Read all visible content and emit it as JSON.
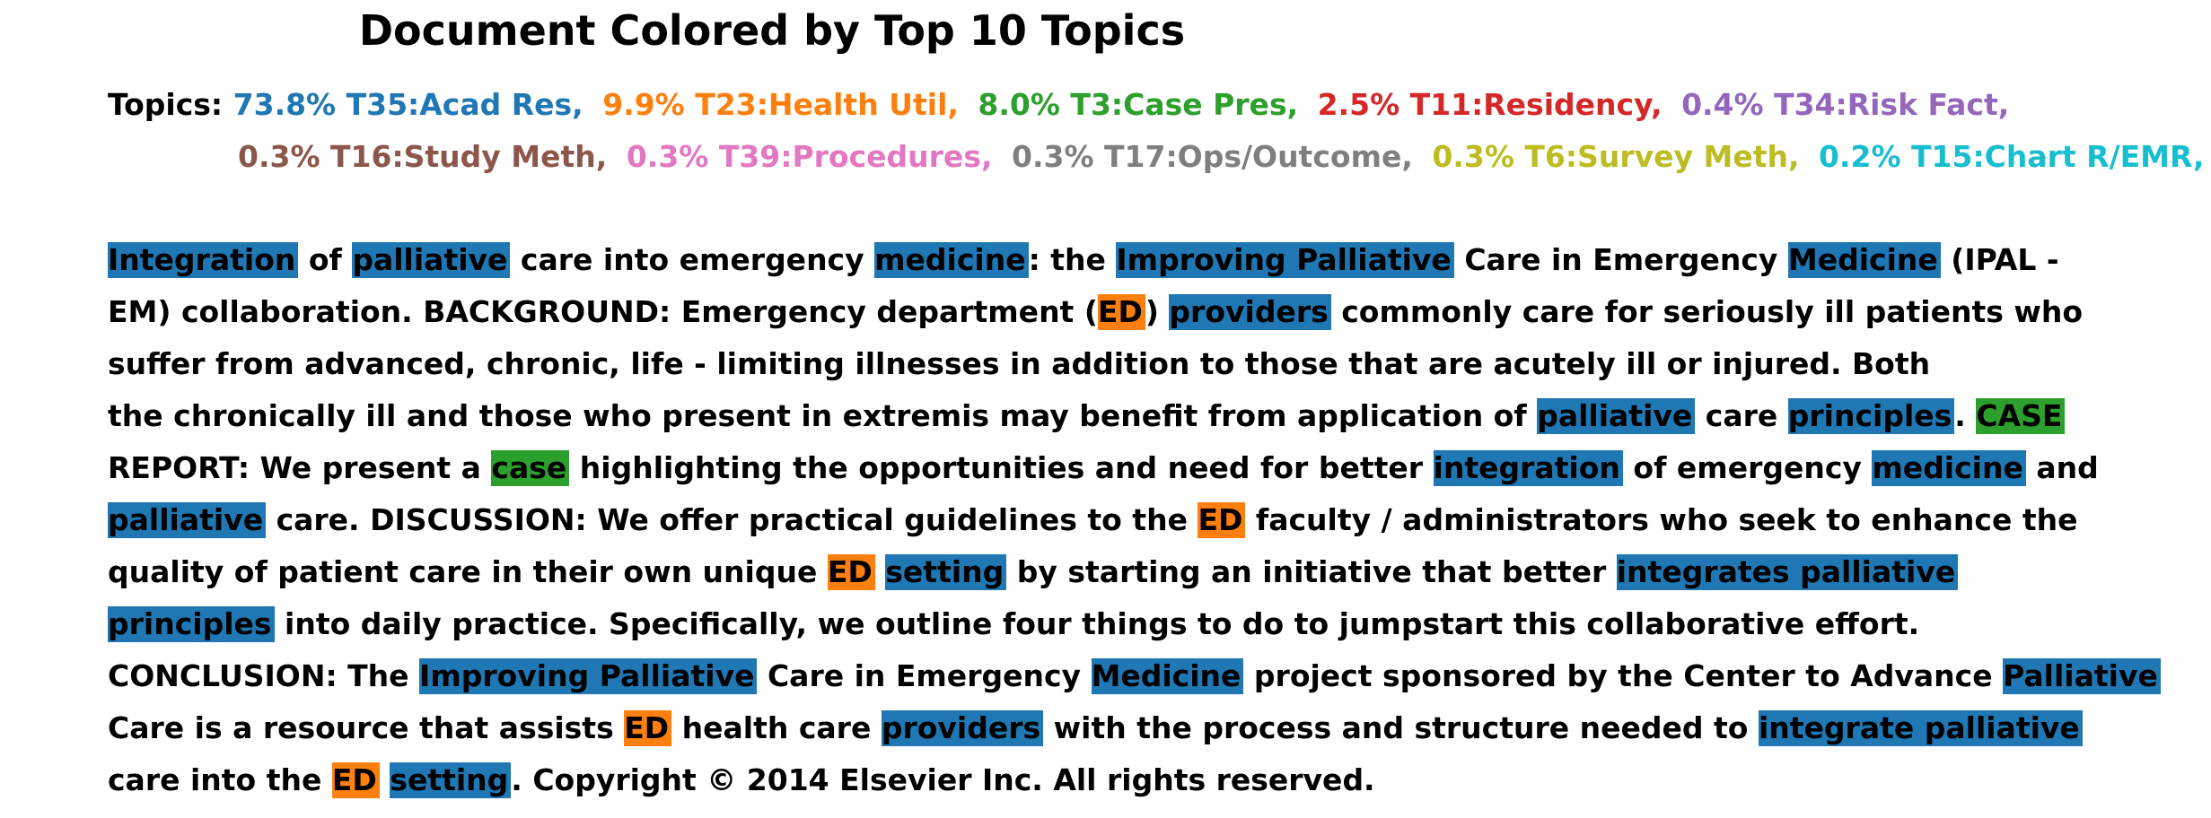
{
  "title": "Document Colored by Top 10 Topics",
  "legend": {
    "label": "Topics:",
    "lines": [
      [
        {
          "text": "73.8% T35:Acad Res,",
          "color": "#1f77b4"
        },
        {
          "text": "9.9% T23:Health Util,",
          "color": "#ff7f0e"
        },
        {
          "text": "8.0% T3:Case Pres,",
          "color": "#2ca02c"
        },
        {
          "text": "2.5% T11:Residency,",
          "color": "#d62728"
        },
        {
          "text": "0.4% T34:Risk Fact,",
          "color": "#9467bd"
        }
      ],
      [
        {
          "text": "0.3% T16:Study Meth,",
          "color": "#8c564b"
        },
        {
          "text": "0.3% T39:Procedures,",
          "color": "#e377c2"
        },
        {
          "text": "0.3% T17:Ops/Outcome,",
          "color": "#7f7f7f"
        },
        {
          "text": "0.3% T6:Survey Meth,",
          "color": "#bcbd22"
        },
        {
          "text": "0.2% T15:Chart R/EMR,",
          "color": "#17becf"
        }
      ]
    ]
  },
  "topic_colors": {
    "T35": "#1f77b4",
    "T23": "#ff7f0e",
    "T3": "#2ca02c"
  },
  "document": [
    [
      [
        "Integration",
        "T35"
      ],
      [
        " of "
      ],
      [
        "palliative",
        "T35"
      ],
      [
        " care into emergency "
      ],
      [
        "medicine",
        "T35"
      ],
      [
        ": the "
      ],
      [
        "Improving Palliative",
        "T35"
      ],
      [
        " Care in Emergency "
      ],
      [
        "Medicine",
        "T35"
      ],
      [
        " (IPAL -"
      ]
    ],
    [
      [
        "EM) collaboration. BACKGROUND: Emergency department ("
      ],
      [
        "ED",
        "T23"
      ],
      [
        ") "
      ],
      [
        "providers",
        "T35"
      ],
      [
        " commonly care for seriously ill patients who"
      ]
    ],
    [
      [
        "suffer from advanced, chronic, life - limiting illnesses in addition to those that are acutely ill or injured. Both"
      ]
    ],
    [
      [
        "the chronically ill and those who present in extremis may benefit from application of "
      ],
      [
        "palliative",
        "T35"
      ],
      [
        " care "
      ],
      [
        "principles",
        "T35"
      ],
      [
        ". "
      ],
      [
        "CASE",
        "T3"
      ]
    ],
    [
      [
        "REPORT: We present a "
      ],
      [
        "case",
        "T3"
      ],
      [
        " highlighting the opportunities and need for better "
      ],
      [
        "integration",
        "T35"
      ],
      [
        " of emergency "
      ],
      [
        "medicine",
        "T35"
      ],
      [
        " and"
      ]
    ],
    [
      [
        "palliative",
        "T35"
      ],
      [
        " care. DISCUSSION: We offer practical guidelines to the "
      ],
      [
        "ED",
        "T23"
      ],
      [
        " faculty / administrators who seek to enhance the"
      ]
    ],
    [
      [
        "quality of patient care in their own unique "
      ],
      [
        "ED",
        "T23"
      ],
      [
        " "
      ],
      [
        "setting",
        "T35"
      ],
      [
        " by starting an initiative that better "
      ],
      [
        "integrates palliative",
        "T35"
      ]
    ],
    [
      [
        "principles",
        "T35"
      ],
      [
        " into daily practice. Specifically, we outline four things to do to jumpstart this collaborative effort."
      ]
    ],
    [
      [
        "CONCLUSION: The "
      ],
      [
        "Improving Palliative",
        "T35"
      ],
      [
        " Care in Emergency "
      ],
      [
        "Medicine",
        "T35"
      ],
      [
        " project sponsored by the Center to Advance "
      ],
      [
        "Palliative",
        "T35"
      ]
    ],
    [
      [
        "Care is a resource that assists "
      ],
      [
        "ED",
        "T23"
      ],
      [
        " health care "
      ],
      [
        "providers",
        "T35"
      ],
      [
        " with the process and structure needed to "
      ],
      [
        "integrate palliative",
        "T35"
      ]
    ],
    [
      [
        "care into the "
      ],
      [
        "ED",
        "T23"
      ],
      [
        " "
      ],
      [
        "setting",
        "T35"
      ],
      [
        ". Copyright © 2014 Elsevier Inc. All rights reserved."
      ]
    ]
  ]
}
